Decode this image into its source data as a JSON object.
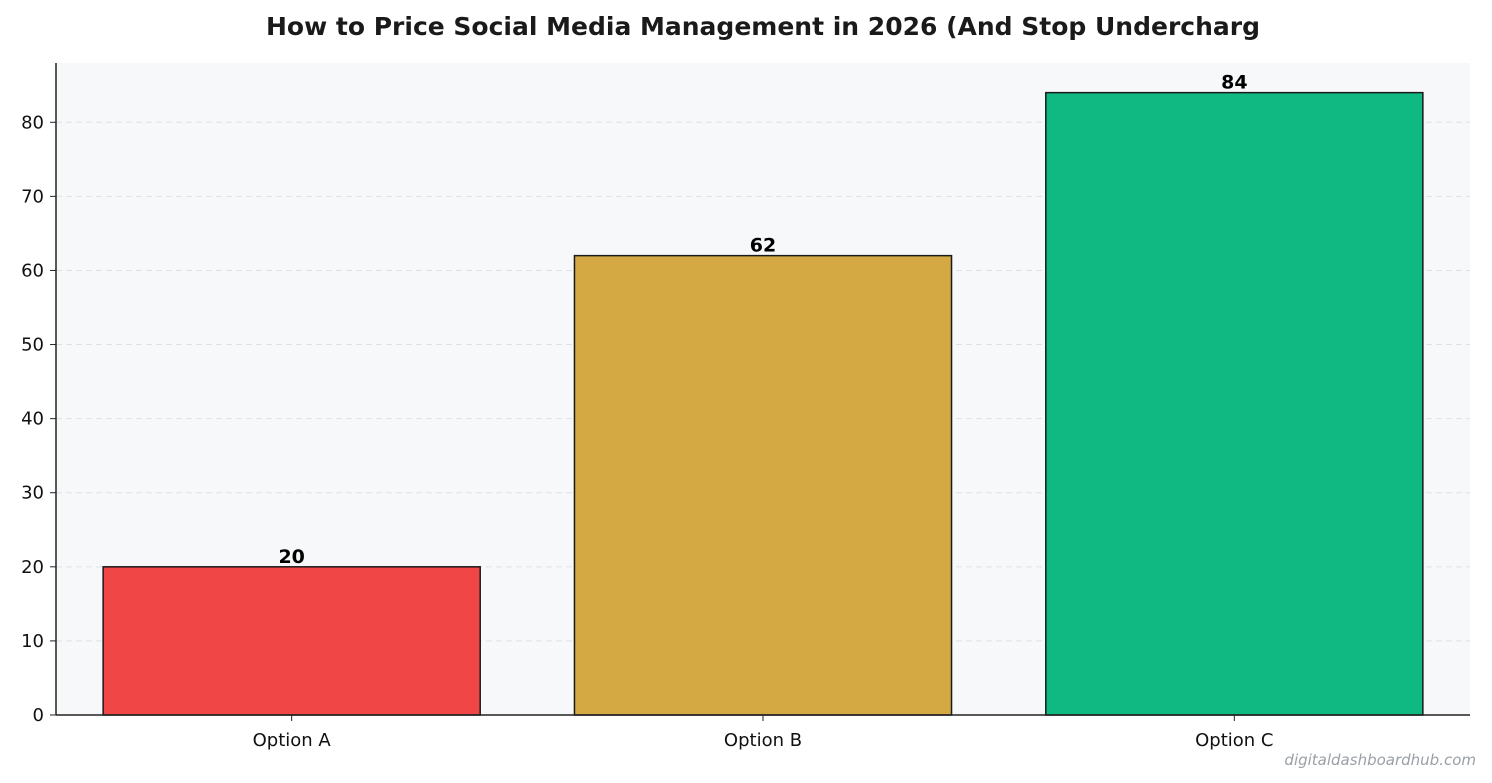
{
  "chart_data": {
    "type": "bar",
    "title": "How to Price Social Media Management in 2026 (And Stop Undercharg",
    "categories": [
      "Option A",
      "Option B",
      "Option C"
    ],
    "values": [
      20,
      62,
      84
    ],
    "colors": [
      "#f04646",
      "#d4a843",
      "#10b981"
    ],
    "xlabel": "",
    "ylabel": "",
    "ylim": [
      0,
      88
    ],
    "yticks": [
      0,
      10,
      20,
      30,
      40,
      50,
      60,
      70,
      80
    ],
    "grid": true,
    "legend": "none",
    "background_color": "#f7f8fa",
    "bar_edge_color": "#1a1a1a"
  },
  "watermark": "digitaldashboardhub.com"
}
